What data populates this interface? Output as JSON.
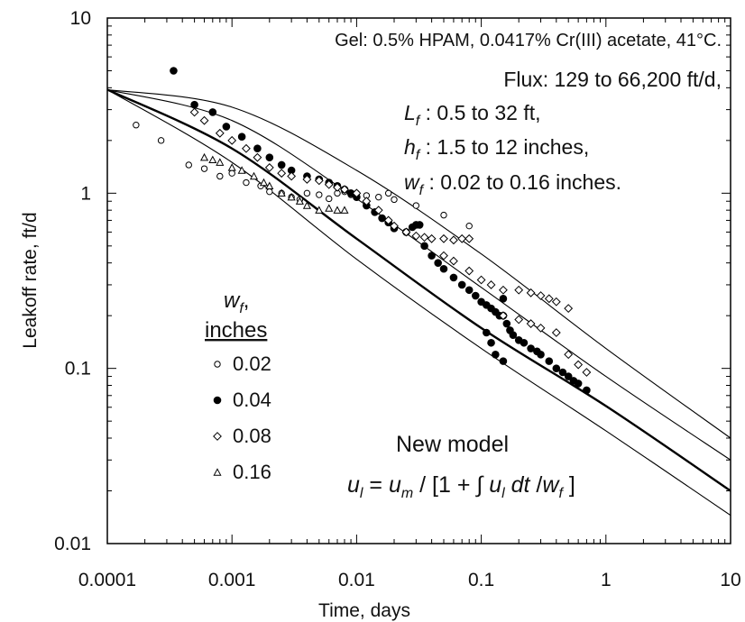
{
  "chart_data": {
    "type": "scatter",
    "title": "",
    "xlabel": "Time, days",
    "ylabel": "Leakoff rate, ft/d",
    "x_scale": "log",
    "y_scale": "log",
    "xlim": [
      0.0001,
      10
    ],
    "ylim": [
      0.01,
      10
    ],
    "grid": false,
    "x_ticks": [
      {
        "value": 0.0001,
        "label": "0.0001"
      },
      {
        "value": 0.001,
        "label": "0.001"
      },
      {
        "value": 0.01,
        "label": "0.01"
      },
      {
        "value": 0.1,
        "label": "0.1"
      },
      {
        "value": 1,
        "label": "1"
      },
      {
        "value": 10,
        "label": "10"
      }
    ],
    "y_ticks": [
      {
        "value": 0.01,
        "label": "0.01"
      },
      {
        "value": 0.1,
        "label": "0.1"
      },
      {
        "value": 1,
        "label": "1"
      },
      {
        "value": 10,
        "label": "10"
      }
    ],
    "annotation": {
      "gel": "Gel: 0.5% HPAM, 0.0417% Cr(III) acetate, 41°C.",
      "flux": "Flux: 129 to 66,200 ft/d,",
      "lf_sym": "L",
      "lf_sub": "f",
      "lf_text": " : 0.5 to 32 ft,",
      "hf_sym": "h",
      "hf_sub": "f",
      "hf_text": " : 1.5 to 12 inches,",
      "wf_sym": "w",
      "wf_sub": "f",
      "wf_text": " : 0.02 to 0.16 inches."
    },
    "legend": {
      "title_sym": "w",
      "title_sub": "f",
      "title_comma": ",",
      "units": "inches",
      "placement": "left-middle"
    },
    "model_label": "New model",
    "equation": "u_l = u_m / [1 + ∫ u_l dt / w_f]",
    "model_curves": [
      {
        "name": "",
        "style": "thick",
        "points": [
          [
            0.0001,
            3.9
          ],
          [
            0.001,
            1.8
          ],
          [
            0.01,
            0.55
          ],
          [
            0.1,
            0.17
          ],
          [
            1,
            0.061
          ],
          [
            10,
            0.02
          ]
        ]
      },
      {
        "name": "",
        "style": "thin",
        "points": [
          [
            0.0001,
            3.9
          ],
          [
            0.001,
            1.5
          ],
          [
            0.01,
            0.42
          ],
          [
            0.1,
            0.13
          ],
          [
            1,
            0.044
          ],
          [
            10,
            0.0145
          ]
        ]
      },
      {
        "name": "",
        "style": "thin",
        "points": [
          [
            0.0001,
            3.9
          ],
          [
            0.001,
            2.6
          ],
          [
            0.01,
            0.93
          ],
          [
            0.1,
            0.29
          ],
          [
            1,
            0.09
          ],
          [
            10,
            0.03
          ]
        ]
      },
      {
        "name": "",
        "style": "thin",
        "points": [
          [
            0.0001,
            3.9
          ],
          [
            0.001,
            3.1
          ],
          [
            0.01,
            1.35
          ],
          [
            0.1,
            0.45
          ],
          [
            1,
            0.13
          ],
          [
            10,
            0.04
          ]
        ]
      }
    ],
    "series": [
      {
        "name": "0.02",
        "marker": "open-circle",
        "points": [
          [
            0.00017,
            2.45
          ],
          [
            0.00027,
            2.0
          ],
          [
            0.00045,
            1.45
          ],
          [
            0.0006,
            1.38
          ],
          [
            0.0008,
            1.25
          ],
          [
            0.001,
            1.3
          ],
          [
            0.0013,
            1.15
          ],
          [
            0.0017,
            1.1
          ],
          [
            0.002,
            1.02
          ],
          [
            0.0025,
            1.0
          ],
          [
            0.003,
            0.95
          ],
          [
            0.0035,
            0.92
          ],
          [
            0.004,
            1.0
          ],
          [
            0.005,
            0.98
          ],
          [
            0.006,
            0.93
          ],
          [
            0.007,
            1.0
          ],
          [
            0.008,
            1.02
          ],
          [
            0.009,
            0.98
          ],
          [
            0.01,
            1.0
          ],
          [
            0.012,
            0.97
          ],
          [
            0.015,
            0.95
          ],
          [
            0.018,
            1.0
          ],
          [
            0.02,
            0.92
          ],
          [
            0.03,
            0.85
          ],
          [
            0.05,
            0.75
          ],
          [
            0.08,
            0.65
          ]
        ]
      },
      {
        "name": "0.04",
        "marker": "filled-circle",
        "points": [
          [
            0.00034,
            5.0
          ],
          [
            0.0005,
            3.2
          ],
          [
            0.0007,
            2.9
          ],
          [
            0.0009,
            2.4
          ],
          [
            0.0012,
            2.1
          ],
          [
            0.0016,
            1.8
          ],
          [
            0.002,
            1.6
          ],
          [
            0.0025,
            1.45
          ],
          [
            0.003,
            1.35
          ],
          [
            0.004,
            1.25
          ],
          [
            0.005,
            1.2
          ],
          [
            0.006,
            1.15
          ],
          [
            0.007,
            1.1
          ],
          [
            0.008,
            1.05
          ],
          [
            0.009,
            1.0
          ],
          [
            0.01,
            0.95
          ],
          [
            0.012,
            0.85
          ],
          [
            0.014,
            0.78
          ],
          [
            0.016,
            0.72
          ],
          [
            0.018,
            0.68
          ],
          [
            0.02,
            0.63
          ],
          [
            0.025,
            0.6
          ],
          [
            0.028,
            0.64
          ],
          [
            0.03,
            0.66
          ],
          [
            0.032,
            0.66
          ],
          [
            0.035,
            0.5
          ],
          [
            0.04,
            0.44
          ],
          [
            0.045,
            0.4
          ],
          [
            0.05,
            0.37
          ],
          [
            0.06,
            0.33
          ],
          [
            0.07,
            0.3
          ],
          [
            0.08,
            0.28
          ],
          [
            0.09,
            0.26
          ],
          [
            0.1,
            0.24
          ],
          [
            0.11,
            0.23
          ],
          [
            0.12,
            0.22
          ],
          [
            0.13,
            0.21
          ],
          [
            0.14,
            0.2
          ],
          [
            0.15,
            0.2
          ],
          [
            0.16,
            0.18
          ],
          [
            0.17,
            0.165
          ],
          [
            0.18,
            0.155
          ],
          [
            0.2,
            0.145
          ],
          [
            0.22,
            0.14
          ],
          [
            0.25,
            0.13
          ],
          [
            0.28,
            0.125
          ],
          [
            0.3,
            0.12
          ],
          [
            0.35,
            0.11
          ],
          [
            0.4,
            0.1
          ],
          [
            0.45,
            0.095
          ],
          [
            0.5,
            0.09
          ],
          [
            0.55,
            0.085
          ],
          [
            0.6,
            0.082
          ],
          [
            0.7,
            0.075
          ],
          [
            0.13,
            0.12
          ],
          [
            0.15,
            0.11
          ],
          [
            0.12,
            0.14
          ],
          [
            0.11,
            0.16
          ],
          [
            0.15,
            0.25
          ]
        ]
      },
      {
        "name": "0.08",
        "marker": "open-diamond",
        "points": [
          [
            0.0005,
            2.9
          ],
          [
            0.0006,
            2.6
          ],
          [
            0.0008,
            2.2
          ],
          [
            0.001,
            2.0
          ],
          [
            0.0013,
            1.8
          ],
          [
            0.0016,
            1.6
          ],
          [
            0.002,
            1.4
          ],
          [
            0.0025,
            1.3
          ],
          [
            0.003,
            1.25
          ],
          [
            0.004,
            1.2
          ],
          [
            0.005,
            1.18
          ],
          [
            0.006,
            1.12
          ],
          [
            0.007,
            1.08
          ],
          [
            0.008,
            1.05
          ],
          [
            0.01,
            1.0
          ],
          [
            0.012,
            0.9
          ],
          [
            0.015,
            0.8
          ],
          [
            0.018,
            0.7
          ],
          [
            0.02,
            0.65
          ],
          [
            0.025,
            0.6
          ],
          [
            0.03,
            0.57
          ],
          [
            0.035,
            0.56
          ],
          [
            0.04,
            0.55
          ],
          [
            0.05,
            0.55
          ],
          [
            0.06,
            0.54
          ],
          [
            0.07,
            0.55
          ],
          [
            0.08,
            0.55
          ],
          [
            0.05,
            0.44
          ],
          [
            0.06,
            0.41
          ],
          [
            0.08,
            0.36
          ],
          [
            0.1,
            0.32
          ],
          [
            0.12,
            0.3
          ],
          [
            0.15,
            0.28
          ],
          [
            0.2,
            0.28
          ],
          [
            0.25,
            0.27
          ],
          [
            0.3,
            0.26
          ],
          [
            0.35,
            0.25
          ],
          [
            0.4,
            0.24
          ],
          [
            0.5,
            0.22
          ],
          [
            0.15,
            0.2
          ],
          [
            0.2,
            0.19
          ],
          [
            0.25,
            0.18
          ],
          [
            0.3,
            0.17
          ],
          [
            0.4,
            0.16
          ],
          [
            0.5,
            0.12
          ],
          [
            0.6,
            0.105
          ],
          [
            0.7,
            0.095
          ]
        ]
      },
      {
        "name": "0.16",
        "marker": "open-triangle",
        "points": [
          [
            0.0006,
            1.6
          ],
          [
            0.0007,
            1.55
          ],
          [
            0.0008,
            1.5
          ],
          [
            0.001,
            1.4
          ],
          [
            0.0012,
            1.35
          ],
          [
            0.0015,
            1.25
          ],
          [
            0.0018,
            1.15
          ],
          [
            0.002,
            1.1
          ],
          [
            0.0025,
            1.0
          ],
          [
            0.003,
            0.95
          ],
          [
            0.0035,
            0.9
          ],
          [
            0.004,
            0.85
          ],
          [
            0.005,
            0.8
          ],
          [
            0.006,
            0.82
          ],
          [
            0.007,
            0.8
          ],
          [
            0.008,
            0.8
          ]
        ]
      }
    ]
  }
}
